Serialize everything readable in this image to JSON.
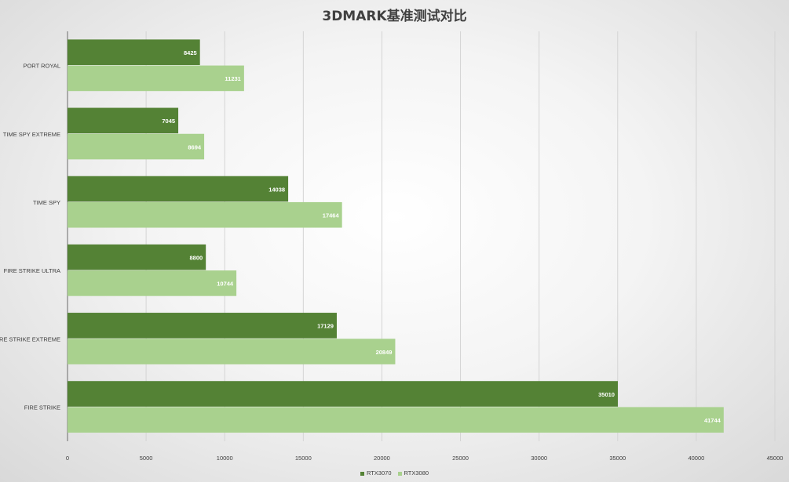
{
  "chart_data": {
    "type": "bar",
    "orientation": "horizontal",
    "title": "3DMARK基准测试对比",
    "categories": [
      "PORT ROYAL",
      "TIME SPY EXTREME",
      "TIME SPY",
      "FIRE STRIKE ULTRA",
      "FIRE STRIKE EXTREME",
      "FIRE STRIKE"
    ],
    "series": [
      {
        "name": "RTX3070",
        "color": "#548235",
        "values": [
          8425,
          7045,
          14038,
          8800,
          17129,
          35010
        ]
      },
      {
        "name": "RTX3080",
        "color": "#a9d18e",
        "values": [
          11231,
          8694,
          17464,
          10744,
          20849,
          41744
        ]
      }
    ],
    "xlim": [
      0,
      45000
    ],
    "xticks": [
      0,
      5000,
      10000,
      15000,
      20000,
      25000,
      30000,
      35000,
      40000,
      45000
    ],
    "grid": true,
    "data_labels": true,
    "legend_position": "bottom"
  }
}
